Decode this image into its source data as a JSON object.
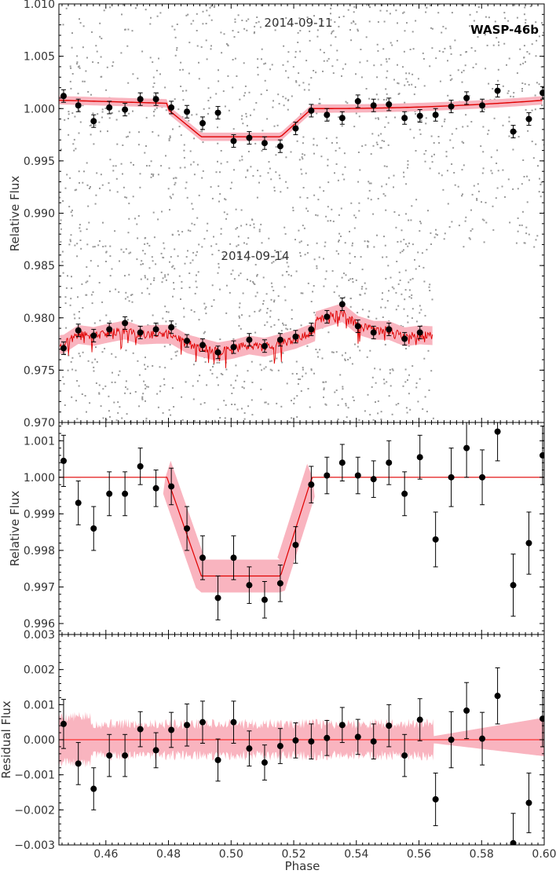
{
  "figure": {
    "xlabel": "Phase",
    "planet_label": "WASP-46b"
  },
  "colors": {
    "model": "#e00000",
    "band": "#f9b4bf",
    "points": "#000000",
    "raw": "#999999",
    "zero_line": "#ff3030"
  },
  "chart_data": [
    {
      "type": "scatter",
      "panel": "lightcurves",
      "ylabel": "Relative Flux",
      "xlim": [
        0.445,
        0.6
      ],
      "ylim": [
        0.97,
        1.01
      ],
      "yticks": [
        "0.970",
        "0.975",
        "0.980",
        "0.985",
        "0.990",
        "0.995",
        "1.000",
        "1.005",
        "1.010"
      ],
      "grid": false,
      "annotations": [
        "2014-09-11",
        "2014-09-14"
      ],
      "series": [
        {
          "name": "2014-09-11",
          "x": [
            0.4465,
            0.4512,
            0.4561,
            0.4611,
            0.4661,
            0.471,
            0.476,
            0.4809,
            0.4859,
            0.4909,
            0.4958,
            0.5008,
            0.5058,
            0.5107,
            0.5157,
            0.5206,
            0.5256,
            0.5306,
            0.5355,
            0.5405,
            0.5455,
            0.5504,
            0.5554,
            0.5603,
            0.5653,
            0.5703,
            0.5752,
            0.5802,
            0.5851,
            0.5901,
            0.5951,
            0.5995
          ],
          "y": [
            1.0012,
            1.0003,
            0.9988,
            1.0001,
            0.9999,
            1.0009,
            1.0009,
            1.0001,
            0.9997,
            0.9986,
            0.9996,
            0.9969,
            0.9972,
            0.9967,
            0.9964,
            0.9981,
            0.9998,
            0.9994,
            0.9991,
            1.0007,
            1.0003,
            1.0004,
            0.9991,
            0.9993,
            0.9994,
            1.0002,
            1.001,
            1.0003,
            1.0017,
            0.9978,
            0.999,
            1.0015
          ],
          "err": 0.0006
        },
        {
          "name": "2014-09-14",
          "x": [
            0.4465,
            0.4512,
            0.4561,
            0.4611,
            0.4661,
            0.471,
            0.476,
            0.4809,
            0.4859,
            0.4909,
            0.4958,
            0.5008,
            0.5058,
            0.5107,
            0.5157,
            0.5206,
            0.5256,
            0.5306,
            0.5355,
            0.5405,
            0.5455,
            0.5504,
            0.5554,
            0.5603
          ],
          "y": [
            0.9771,
            0.9788,
            0.9783,
            0.9789,
            0.9795,
            0.9786,
            0.9789,
            0.9791,
            0.9778,
            0.9774,
            0.9767,
            0.9772,
            0.9779,
            0.9773,
            0.9779,
            0.9782,
            0.9789,
            0.9801,
            0.9813,
            0.9792,
            0.9786,
            0.9789,
            0.978,
            0.9786
          ],
          "err": 0.0006
        }
      ]
    },
    {
      "type": "scatter",
      "panel": "detrended",
      "ylabel": "Relative Flux",
      "xlim": [
        0.445,
        0.6
      ],
      "ylim": [
        0.9957,
        1.0015
      ],
      "yticks": [
        "0.996",
        "0.997",
        "0.998",
        "0.999",
        "1.000",
        "1.001"
      ],
      "grid": false,
      "series": [
        {
          "x": [
            0.4465,
            0.4512,
            0.4561,
            0.4611,
            0.4661,
            0.471,
            0.476,
            0.4809,
            0.4859,
            0.4909,
            0.4958,
            0.5008,
            0.5058,
            0.5107,
            0.5157,
            0.5206,
            0.5256,
            0.5306,
            0.5355,
            0.5405,
            0.5455,
            0.5504,
            0.5554,
            0.5603,
            0.5653,
            0.5703,
            0.5752,
            0.5802,
            0.5851,
            0.5901,
            0.5951,
            0.5995
          ],
          "y": [
            1.00045,
            0.9993,
            0.9986,
            0.99955,
            0.99955,
            1.0003,
            0.9997,
            0.99975,
            0.9986,
            0.9978,
            0.9967,
            0.9978,
            0.99705,
            0.99665,
            0.9971,
            0.99815,
            0.9998,
            1.00005,
            1.0004,
            1.00005,
            0.99995,
            1.0004,
            0.99955,
            1.00055,
            0.9983,
            1.0,
            1.0008,
            1.0,
            1.00125,
            0.99705,
            0.9982,
            1.0006
          ],
          "err": [
            0.0007,
            0.0006,
            0.0006,
            0.0006,
            0.0006,
            0.0005,
            0.0005,
            0.0005,
            0.0006,
            0.0006,
            0.0006,
            0.0006,
            0.0005,
            0.0005,
            0.0005,
            0.0005,
            0.0005,
            0.0005,
            0.0005,
            0.0005,
            0.0005,
            0.0006,
            0.0006,
            0.0006,
            0.00075,
            0.0008,
            0.0008,
            0.00075,
            0.0008,
            0.00085,
            0.00085,
            0.0008
          ]
        }
      ]
    },
    {
      "type": "scatter",
      "panel": "residuals",
      "ylabel": "Residual Flux",
      "xlabel": "Phase",
      "xlim": [
        0.445,
        0.6
      ],
      "ylim": [
        -0.003,
        0.003
      ],
      "xticks": [
        "0.46",
        "0.48",
        "0.50",
        "0.52",
        "0.54",
        "0.56",
        "0.58",
        "0.60"
      ],
      "yticks": [
        "-0.003",
        "-0.002",
        "-0.001",
        "0.000",
        "0.001",
        "0.002",
        "0.003"
      ],
      "grid": false,
      "series": [
        {
          "x": [
            0.4465,
            0.4512,
            0.4561,
            0.4611,
            0.4661,
            0.471,
            0.476,
            0.4809,
            0.4859,
            0.4909,
            0.4958,
            0.5008,
            0.5058,
            0.5107,
            0.5157,
            0.5206,
            0.5256,
            0.5306,
            0.5355,
            0.5405,
            0.5455,
            0.5504,
            0.5554,
            0.5603,
            0.5653,
            0.5703,
            0.5752,
            0.5802,
            0.5851,
            0.5901,
            0.5951,
            0.5995
          ],
          "y": [
            0.00045,
            -0.00068,
            -0.0014,
            -0.00045,
            -0.00045,
            0.0003,
            -0.0003,
            0.00028,
            0.00042,
            0.0005,
            -0.00058,
            0.0005,
            -0.00025,
            -0.00065,
            -0.00018,
            -2e-05,
            -5e-05,
            5e-05,
            0.00042,
            8e-05,
            -5e-05,
            0.0004,
            -0.00045,
            0.00057,
            -0.0017,
            0.0,
            0.00083,
            3e-05,
            0.00125,
            -0.00295,
            -0.0018,
            0.0006
          ],
          "err": [
            0.0007,
            0.0006,
            0.0006,
            0.0006,
            0.0006,
            0.0005,
            0.0005,
            0.0005,
            0.0006,
            0.0006,
            0.0006,
            0.0006,
            0.0005,
            0.0005,
            0.0005,
            0.0005,
            0.0005,
            0.0005,
            0.0005,
            0.0005,
            0.0005,
            0.0006,
            0.0006,
            0.0006,
            0.00075,
            0.0008,
            0.0008,
            0.00075,
            0.0008,
            0.00085,
            0.00085,
            0.0008
          ]
        }
      ]
    }
  ]
}
